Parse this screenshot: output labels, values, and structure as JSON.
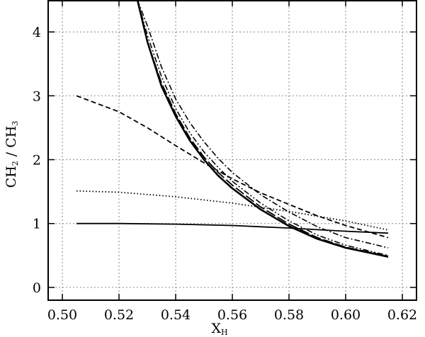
{
  "chart_data": {
    "type": "line",
    "title": "",
    "xlabel": {
      "main": "X",
      "sub": "H"
    },
    "ylabel": {
      "part1": "CH",
      "sub1": "2",
      "part2": " / CH",
      "sub2": "3"
    },
    "xlim": [
      0.495,
      0.625
    ],
    "ylim": [
      -0.2,
      4.5
    ],
    "xticks": [
      0.5,
      0.52,
      0.54,
      0.56,
      0.58,
      0.6,
      0.62
    ],
    "xtick_labels": [
      "0.50",
      "0.52",
      "0.54",
      "0.56",
      "0.58",
      "0.60",
      "0.62"
    ],
    "yticks": [
      0,
      1,
      2,
      3,
      4
    ],
    "ytick_labels": [
      "0",
      "1",
      "2",
      "3",
      "4"
    ],
    "grid": true,
    "legend": "none",
    "series": [
      {
        "style": "solid",
        "x": [
          0.505,
          0.52,
          0.54,
          0.56,
          0.58,
          0.6,
          0.615
        ],
        "y": [
          1.0,
          1.0,
          0.99,
          0.97,
          0.93,
          0.88,
          0.85
        ]
      },
      {
        "style": "dotted",
        "x": [
          0.505,
          0.52,
          0.54,
          0.56,
          0.58,
          0.6,
          0.615
        ],
        "y": [
          1.51,
          1.49,
          1.42,
          1.32,
          1.19,
          1.04,
          0.9
        ]
      },
      {
        "style": "dashed",
        "x": [
          0.505,
          0.52,
          0.53,
          0.54,
          0.55,
          0.56,
          0.57,
          0.58,
          0.59,
          0.6,
          0.615
        ],
        "y": [
          3.0,
          2.75,
          2.5,
          2.22,
          1.95,
          1.7,
          1.48,
          1.3,
          1.12,
          0.97,
          0.78
        ]
      },
      {
        "style": "dashdot",
        "x": [
          0.5265,
          0.53,
          0.535,
          0.54,
          0.545,
          0.55,
          0.555,
          0.56,
          0.57,
          0.58,
          0.59,
          0.6,
          0.615
        ],
        "y": [
          4.5,
          4.1,
          3.45,
          2.95,
          2.58,
          2.28,
          2.02,
          1.8,
          1.45,
          1.18,
          0.95,
          0.78,
          0.62
        ]
      },
      {
        "style": "dashdotdot",
        "x": [
          0.5265,
          0.53,
          0.535,
          0.54,
          0.545,
          0.55,
          0.555,
          0.56,
          0.57,
          0.58,
          0.59,
          0.6,
          0.615
        ],
        "y": [
          4.5,
          3.95,
          3.3,
          2.8,
          2.42,
          2.12,
          1.88,
          1.66,
          1.32,
          1.04,
          0.82,
          0.66,
          0.5
        ]
      },
      {
        "style": "longdash",
        "x": [
          0.5265,
          0.53,
          0.535,
          0.54,
          0.545,
          0.55,
          0.555,
          0.56,
          0.57,
          0.58,
          0.59,
          0.6,
          0.615
        ],
        "y": [
          4.5,
          3.85,
          3.2,
          2.72,
          2.34,
          2.04,
          1.8,
          1.6,
          1.26,
          0.99,
          0.78,
          0.63,
          0.49
        ]
      },
      {
        "style": "solid-thick",
        "x": [
          0.5265,
          0.53,
          0.535,
          0.54,
          0.545,
          0.55,
          0.555,
          0.56,
          0.57,
          0.58,
          0.59,
          0.6,
          0.615
        ],
        "y": [
          4.5,
          3.85,
          3.15,
          2.68,
          2.3,
          2.0,
          1.75,
          1.55,
          1.22,
          0.96,
          0.76,
          0.62,
          0.48
        ]
      }
    ]
  }
}
